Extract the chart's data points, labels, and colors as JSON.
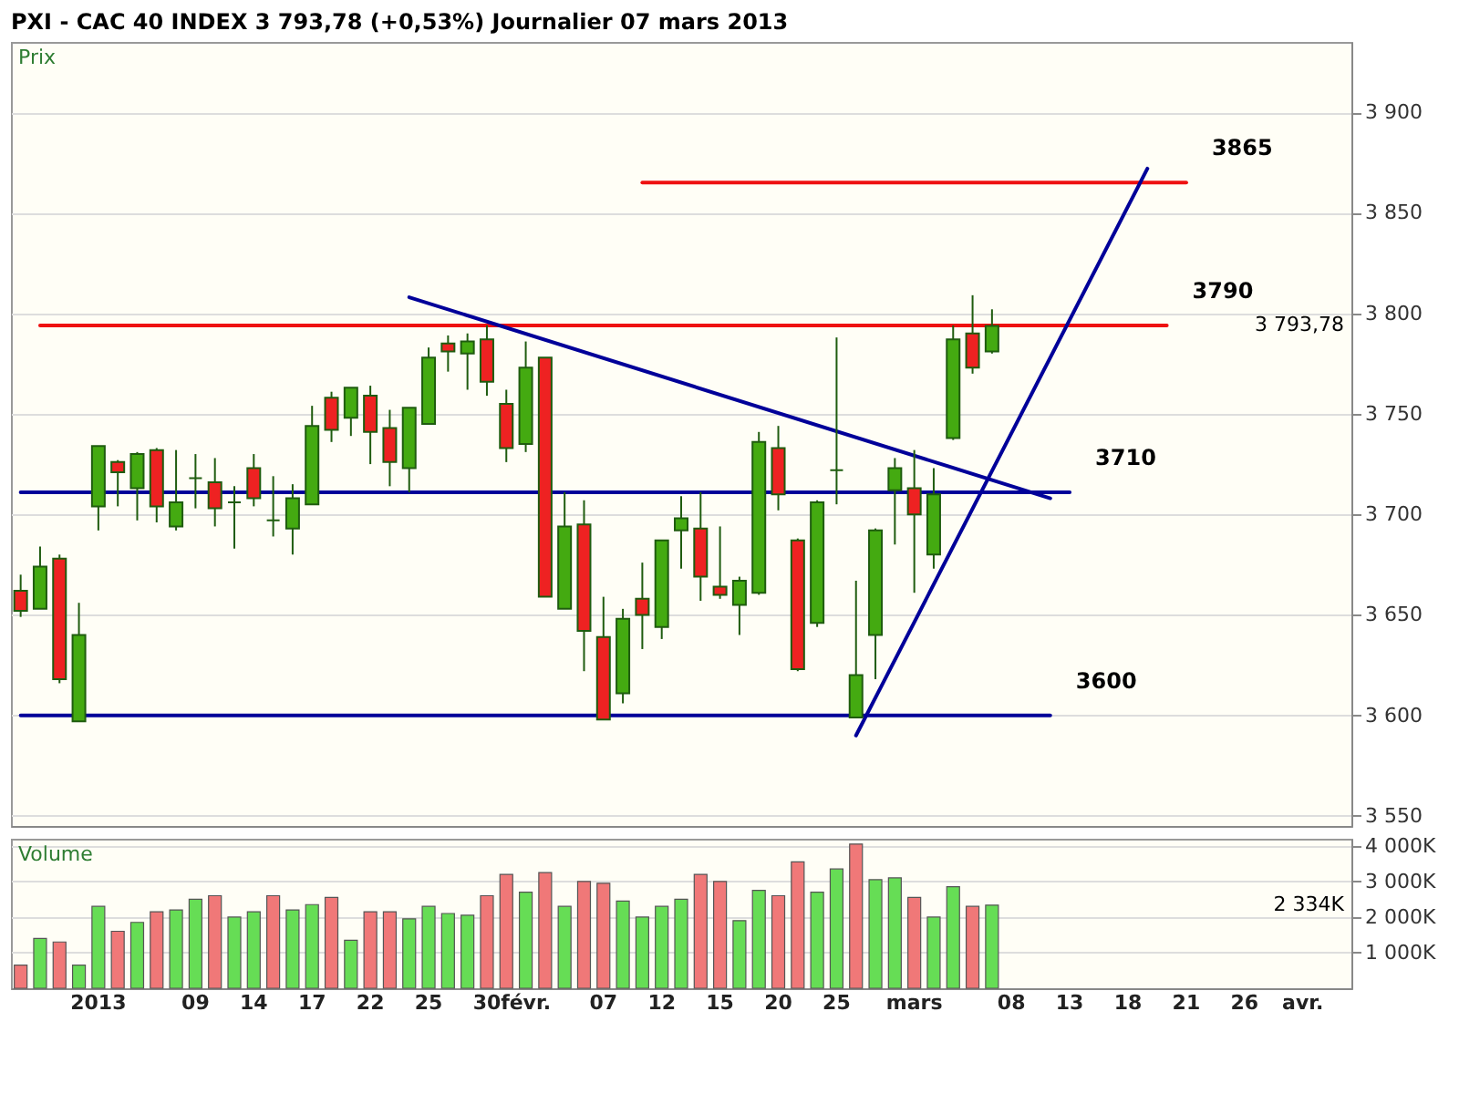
{
  "chart_data": [
    {
      "type": "candlestick",
      "title": "PXI - CAC 40 INDEX   3 793,78 (+0,53%)   Journalier  07 mars 2013",
      "categories": [
        null,
        null,
        null,
        null,
        null,
        null,
        null,
        null,
        null,
        null,
        null,
        null,
        null,
        null,
        null,
        null,
        null,
        null,
        null,
        null,
        null,
        null,
        null,
        null,
        null,
        null,
        null,
        null,
        null,
        null,
        null,
        null,
        null,
        null,
        null,
        null,
        null,
        null,
        null,
        null,
        null,
        null,
        null,
        null,
        null,
        null,
        null,
        null,
        null,
        null,
        null,
        null,
        null,
        null,
        null,
        null,
        null,
        null,
        null,
        null,
        null,
        null,
        null,
        null,
        null,
        null,
        null,
        null,
        null
      ],
      "ohlc": [
        [
          3662,
          3670,
          3649,
          3652
        ],
        [
          3653,
          3684,
          3653,
          3674
        ],
        [
          3678,
          3680,
          3616,
          3618
        ],
        [
          3597,
          3656,
          3597,
          3640
        ],
        [
          3704,
          3734,
          3692,
          3734
        ],
        [
          3726,
          3727,
          3704,
          3721
        ],
        [
          3713,
          3731,
          3697,
          3730
        ],
        [
          3732,
          3733,
          3696,
          3704
        ],
        [
          3694,
          3732,
          3692,
          3706
        ],
        [
          3718,
          3730,
          3703,
          3718
        ],
        [
          3716,
          3728,
          3694,
          3703
        ],
        [
          3706,
          3714,
          3683,
          3706
        ],
        [
          3723,
          3730,
          3704,
          3708
        ],
        [
          3697,
          3719,
          3689,
          3697
        ],
        [
          3693,
          3715,
          3680,
          3708
        ],
        [
          3705,
          3754,
          3705,
          3744
        ],
        [
          3758,
          3761,
          3736,
          3742
        ],
        [
          3748,
          3763,
          3739,
          3763
        ],
        [
          3759,
          3764,
          3725,
          3741
        ],
        [
          3743,
          3752,
          3714,
          3726
        ],
        [
          3723,
          3753,
          3711,
          3753
        ],
        [
          3745,
          3783,
          3745,
          3778
        ],
        [
          3785,
          3789,
          3771,
          3781
        ],
        [
          3780,
          3790,
          3762,
          3786
        ],
        [
          3787,
          3794,
          3759,
          3766
        ],
        [
          3755,
          3762,
          3726,
          3733
        ],
        [
          3735,
          3786,
          3731,
          3773
        ],
        [
          3778,
          3778,
          3659,
          3659
        ],
        [
          3653,
          3711,
          3653,
          3694
        ],
        [
          3695,
          3707,
          3622,
          3642
        ],
        [
          3639,
          3659,
          3598,
          3598
        ],
        [
          3611,
          3653,
          3606,
          3648
        ],
        [
          3658,
          3676,
          3633,
          3650
        ],
        [
          3644,
          3687,
          3638,
          3687
        ],
        [
          3692,
          3709,
          3673,
          3698
        ],
        [
          3693,
          3711,
          3657,
          3669
        ],
        [
          3664,
          3694,
          3658,
          3660
        ],
        [
          3655,
          3669,
          3640,
          3667
        ],
        [
          3661,
          3741,
          3660,
          3736
        ],
        [
          3733,
          3744,
          3702,
          3710
        ],
        [
          3687,
          3688,
          3622,
          3623
        ],
        [
          3646,
          3707,
          3644,
          3706
        ],
        [
          3722,
          3788,
          3705,
          3722
        ],
        [
          3599,
          3667,
          3599,
          3620
        ],
        [
          3640,
          3693,
          3618,
          3692
        ],
        [
          3712,
          3728,
          3685,
          3723
        ],
        [
          3713,
          3732,
          3661,
          3700
        ],
        [
          3680,
          3723,
          3673,
          3710
        ],
        [
          3738,
          3794,
          3737,
          3787
        ],
        [
          3790,
          3809,
          3770,
          3773
        ],
        [
          3781,
          3802,
          3780,
          3793.78
        ],
        null,
        null,
        null,
        null,
        null,
        null,
        null,
        null,
        null,
        null,
        null,
        null,
        null,
        null,
        null,
        null,
        null,
        null
      ],
      "series": [
        {
          "type": "line",
          "name": "3865",
          "color": "#ee1111",
          "values": [
            null,
            null,
            null,
            null,
            null,
            null,
            null,
            null,
            null,
            null,
            null,
            null,
            null,
            null,
            null,
            null,
            null,
            null,
            null,
            null,
            null,
            null,
            null,
            null,
            null,
            null,
            null,
            null,
            null,
            null,
            null,
            null,
            3865,
            null,
            null,
            null,
            null,
            null,
            null,
            null,
            null,
            null,
            null,
            null,
            null,
            null,
            null,
            null,
            null,
            null,
            null,
            null,
            null,
            null,
            null,
            null,
            null,
            null,
            null,
            null,
            3865,
            null,
            null,
            null,
            null,
            null,
            null,
            null,
            null
          ]
        },
        {
          "type": "line",
          "name": "3790",
          "color": "#ee1111",
          "values": [
            null,
            3794,
            null,
            null,
            null,
            null,
            null,
            null,
            null,
            null,
            null,
            null,
            null,
            null,
            null,
            null,
            null,
            null,
            null,
            null,
            null,
            null,
            null,
            null,
            null,
            null,
            null,
            null,
            null,
            null,
            null,
            null,
            null,
            null,
            null,
            null,
            null,
            null,
            null,
            null,
            null,
            null,
            null,
            null,
            null,
            null,
            null,
            null,
            null,
            null,
            null,
            null,
            null,
            null,
            null,
            null,
            null,
            null,
            null,
            3794,
            null,
            null,
            null,
            null,
            null,
            null,
            null,
            null,
            null
          ]
        },
        {
          "type": "line",
          "name": "3710",
          "color": "#000099",
          "values": [
            3711,
            null,
            null,
            null,
            null,
            null,
            null,
            null,
            null,
            null,
            null,
            null,
            null,
            null,
            null,
            null,
            null,
            null,
            null,
            null,
            null,
            null,
            null,
            null,
            null,
            null,
            null,
            null,
            null,
            null,
            null,
            null,
            null,
            null,
            null,
            null,
            null,
            null,
            null,
            null,
            null,
            null,
            null,
            null,
            null,
            null,
            null,
            null,
            null,
            null,
            null,
            null,
            null,
            null,
            3711,
            null,
            null,
            null,
            null,
            null,
            null,
            null,
            null,
            null,
            null,
            null,
            null,
            null,
            null
          ]
        },
        {
          "type": "line",
          "name": "3600",
          "color": "#000099",
          "values": [
            3600,
            null,
            null,
            null,
            null,
            null,
            null,
            null,
            null,
            null,
            null,
            null,
            null,
            null,
            null,
            null,
            null,
            null,
            null,
            null,
            null,
            null,
            null,
            null,
            null,
            null,
            null,
            null,
            null,
            null,
            null,
            null,
            null,
            null,
            null,
            null,
            null,
            null,
            null,
            null,
            null,
            null,
            null,
            null,
            null,
            null,
            null,
            null,
            null,
            null,
            null,
            null,
            null,
            3600,
            null,
            null,
            null,
            null,
            null,
            null,
            null,
            null,
            null,
            null,
            null,
            null,
            null,
            null,
            null
          ]
        },
        {
          "type": "line",
          "color": "#000099",
          "values": [
            null,
            null,
            null,
            null,
            null,
            null,
            null,
            null,
            null,
            null,
            null,
            null,
            null,
            null,
            null,
            null,
            null,
            null,
            null,
            null,
            3808,
            null,
            null,
            null,
            null,
            null,
            null,
            null,
            null,
            null,
            null,
            null,
            null,
            null,
            null,
            null,
            null,
            null,
            null,
            null,
            null,
            null,
            null,
            null,
            null,
            null,
            null,
            null,
            null,
            null,
            null,
            null,
            null,
            3708,
            null,
            null,
            null,
            null,
            null,
            null,
            null,
            null,
            null,
            null,
            null,
            null,
            null,
            null,
            null
          ]
        },
        {
          "type": "line",
          "color": "#000099",
          "values": [
            null,
            null,
            null,
            null,
            null,
            null,
            null,
            null,
            null,
            null,
            null,
            null,
            null,
            null,
            null,
            null,
            null,
            null,
            null,
            null,
            null,
            null,
            null,
            null,
            null,
            null,
            null,
            null,
            null,
            null,
            null,
            null,
            null,
            null,
            null,
            null,
            null,
            null,
            null,
            null,
            null,
            null,
            null,
            3590,
            null,
            null,
            null,
            null,
            null,
            null,
            null,
            null,
            null,
            null,
            null,
            null,
            null,
            null,
            3872,
            null,
            null,
            null,
            null,
            null,
            null,
            null,
            null,
            null,
            null
          ]
        }
      ],
      "ylim": [
        3545,
        3935
      ],
      "yticks": [
        {
          "value": 3550,
          "label": "3 550"
        },
        {
          "value": 3600,
          "label": "3 600"
        },
        {
          "value": 3650,
          "label": "3 650"
        },
        {
          "value": 3700,
          "label": "3 700"
        },
        {
          "value": 3750,
          "label": "3 750"
        },
        {
          "value": 3800,
          "label": "3 800"
        },
        {
          "value": 3850,
          "label": "3 850"
        },
        {
          "value": 3900,
          "label": "3 900"
        }
      ],
      "grid": "y",
      "tick_labels": "y",
      "annotations": [
        "Prix",
        "3 793,78"
      ]
    },
    {
      "type": "bar",
      "categories": [
        null,
        null,
        null,
        null,
        "2013",
        null,
        null,
        null,
        null,
        "09",
        null,
        null,
        "14",
        null,
        null,
        "17",
        null,
        null,
        "22",
        null,
        null,
        "25",
        null,
        null,
        "30",
        null,
        "févr.",
        null,
        null,
        null,
        "07",
        null,
        null,
        "12",
        null,
        null,
        "15",
        null,
        null,
        "20",
        null,
        null,
        "25",
        null,
        null,
        null,
        "mars",
        null,
        null,
        null,
        null,
        "08",
        null,
        null,
        "13",
        null,
        null,
        "18",
        null,
        null,
        "21",
        null,
        null,
        "26",
        null,
        null,
        "avr.",
        null,
        null
      ],
      "values": [
        650,
        1400,
        1300,
        650,
        2300,
        1600,
        1850,
        2150,
        2200,
        2500,
        2600,
        2000,
        2150,
        2600,
        2200,
        2350,
        2550,
        1350,
        2150,
        2150,
        1950,
        2300,
        2100,
        2050,
        2600,
        3200,
        2700,
        3250,
        2300,
        3000,
        2950,
        2450,
        2000,
        2300,
        2500,
        3200,
        3000,
        1900,
        2750,
        2600,
        3550,
        2700,
        3350,
        4050,
        3050,
        3100,
        2550,
        2000,
        2850,
        2300,
        2334,
        null,
        null,
        null,
        null,
        null,
        null,
        null,
        null,
        null,
        null,
        null,
        null,
        null,
        null,
        null,
        null,
        null,
        null
      ],
      "colors": [
        "#f07878",
        "#66dd55",
        "#f07878",
        "#66dd55",
        "#66dd55",
        "#f07878",
        "#66dd55",
        "#f07878",
        "#66dd55",
        "#66dd55",
        "#f07878",
        "#66dd55",
        "#66dd55",
        "#f07878",
        "#66dd55",
        "#66dd55",
        "#f07878",
        "#66dd55",
        "#f07878",
        "#f07878",
        "#66dd55",
        "#66dd55",
        "#66dd55",
        "#66dd55",
        "#f07878",
        "#f07878",
        "#66dd55",
        "#f07878",
        "#66dd55",
        "#f07878",
        "#f07878",
        "#66dd55",
        "#66dd55",
        "#66dd55",
        "#66dd55",
        "#f07878",
        "#f07878",
        "#66dd55",
        "#66dd55",
        "#f07878",
        "#f07878",
        "#66dd55",
        "#66dd55",
        "#f07878",
        "#66dd55",
        "#66dd55",
        "#f07878",
        "#66dd55",
        "#66dd55",
        "#f07878",
        "#66dd55",
        null,
        null,
        null,
        null,
        null,
        null,
        null,
        null,
        null,
        null,
        null,
        null,
        null,
        null,
        null,
        null,
        null,
        null
      ],
      "ylim": [
        0,
        4200
      ],
      "yticks": [
        {
          "value": 1000,
          "label": "1 000K"
        },
        {
          "value": 2000,
          "label": "2 000K"
        },
        {
          "value": 3000,
          "label": "3 000K"
        },
        {
          "value": 4000,
          "label": "4 000K"
        }
      ],
      "grid": "y",
      "annotations": [
        "Volume",
        "2 334K"
      ]
    }
  ]
}
